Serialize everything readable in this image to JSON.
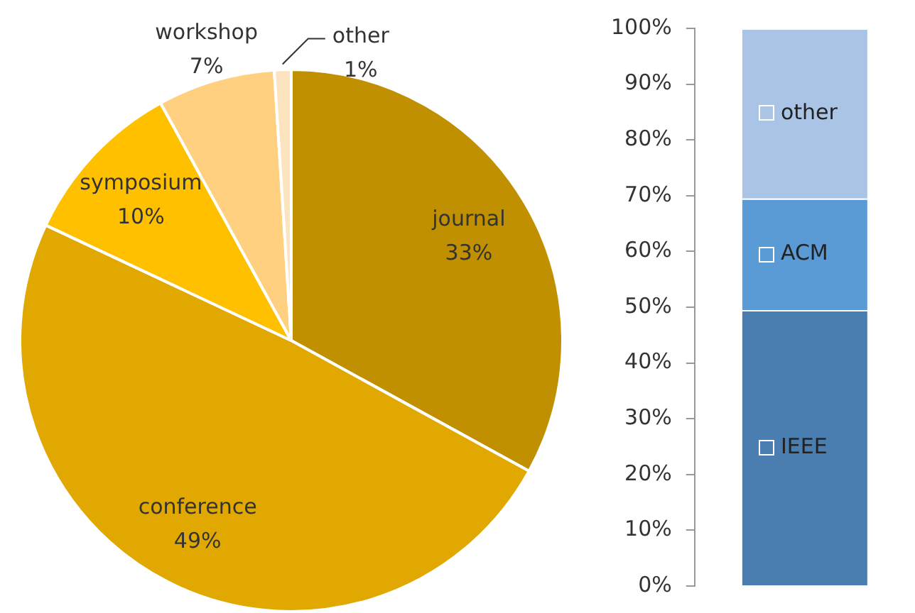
{
  "chart_data": [
    {
      "type": "pie",
      "categories": [
        "journal",
        "conference",
        "symposium",
        "workshop",
        "other"
      ],
      "values": [
        33,
        49,
        10,
        7,
        1
      ],
      "value_labels": [
        "33%",
        "49%",
        "10%",
        "7%",
        "1%"
      ],
      "colors": [
        "#c09000",
        "#e0a800",
        "#ffc000",
        "#ffd080",
        "#fce4c0"
      ]
    },
    {
      "type": "bar",
      "stacked": true,
      "categories": [
        null
      ],
      "tick_labels": "y",
      "ylim": [
        0,
        100
      ],
      "yticks": [
        {
          "value": 0,
          "label": "0%"
        },
        {
          "value": 10,
          "label": "10%"
        },
        {
          "value": 20,
          "label": "20%"
        },
        {
          "value": 30,
          "label": "30%"
        },
        {
          "value": 40,
          "label": "40%"
        },
        {
          "value": 50,
          "label": "50%"
        },
        {
          "value": 60,
          "label": "60%"
        },
        {
          "value": 70,
          "label": "70%"
        },
        {
          "value": 80,
          "label": "80%"
        },
        {
          "value": 90,
          "label": "90%"
        },
        {
          "value": 100,
          "label": "100%"
        }
      ],
      "series": [
        {
          "name": "IEEE",
          "color": "#4a7eb0",
          "values": [
            49.5
          ]
        },
        {
          "name": "ACM",
          "color": "#5b9bd5",
          "values": [
            20
          ]
        },
        {
          "name": "other",
          "color": "#a9c4e4",
          "values": [
            30.5
          ]
        }
      ]
    }
  ]
}
